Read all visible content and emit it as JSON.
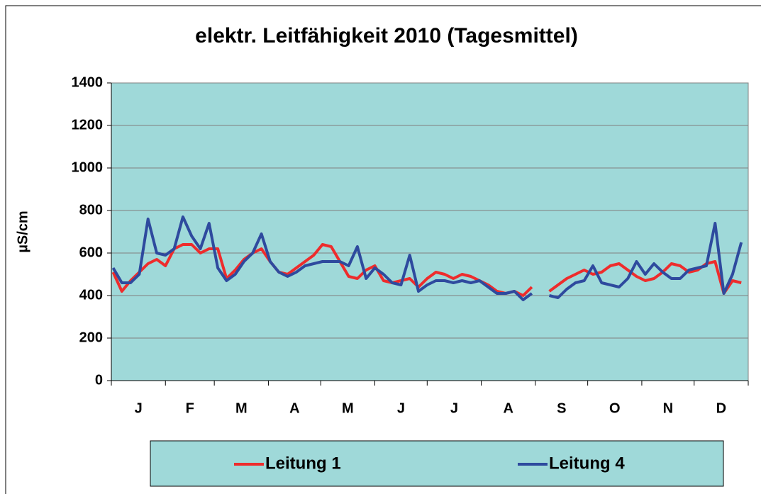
{
  "chart_data": {
    "type": "line",
    "title": "elektr. Leitfähigkeit 2010 (Tagesmittel)",
    "y_label": "µS/cm",
    "categories": [
      "J",
      "F",
      "M",
      "A",
      "M",
      "J",
      "J",
      "A",
      "S",
      "O",
      "N",
      "D"
    ],
    "xlim": [
      0,
      365
    ],
    "xticks": [
      0,
      31,
      59,
      90,
      120,
      151,
      181,
      212,
      243,
      273,
      304,
      334,
      365
    ],
    "x": [
      1,
      6,
      11,
      16,
      21,
      26,
      31,
      36,
      41,
      46,
      51,
      56,
      61,
      66,
      71,
      76,
      81,
      86,
      91,
      96,
      101,
      106,
      111,
      116,
      121,
      126,
      131,
      136,
      141,
      146,
      151,
      156,
      161,
      166,
      171,
      176,
      181,
      186,
      191,
      196,
      201,
      206,
      211,
      216,
      221,
      226,
      231,
      236,
      241,
      246,
      251,
      256,
      261,
      266,
      271,
      276,
      281,
      286,
      291,
      296,
      301,
      306,
      311,
      316,
      321,
      326,
      331,
      336,
      341,
      346,
      351,
      356,
      361
    ],
    "ylim": [
      0,
      1400
    ],
    "yticks": [
      0,
      200,
      400,
      600,
      800,
      1000,
      1200,
      1400
    ],
    "grid": true,
    "legend": "bottom",
    "series": [
      {
        "name": "Leitung 1",
        "color": "#ee2c2c",
        "values": [
          510,
          420,
          470,
          510,
          550,
          570,
          540,
          620,
          640,
          640,
          600,
          620,
          620,
          480,
          520,
          570,
          600,
          620,
          560,
          510,
          500,
          530,
          560,
          590,
          640,
          630,
          560,
          490,
          480,
          520,
          540,
          470,
          460,
          470,
          480,
          440,
          480,
          510,
          500,
          480,
          500,
          490,
          470,
          450,
          420,
          410,
          420,
          400,
          440,
          null,
          420,
          450,
          480,
          500,
          520,
          500,
          510,
          540,
          550,
          520,
          490,
          470,
          480,
          510,
          550,
          540,
          510,
          520,
          550,
          560,
          410,
          470,
          460
        ]
      },
      {
        "name": "Leitung 4",
        "color": "#2e4a9e",
        "values": [
          530,
          460,
          460,
          500,
          760,
          600,
          590,
          620,
          770,
          680,
          620,
          740,
          530,
          470,
          500,
          560,
          600,
          690,
          560,
          510,
          490,
          510,
          540,
          550,
          560,
          560,
          560,
          540,
          630,
          480,
          530,
          500,
          460,
          450,
          590,
          420,
          450,
          470,
          470,
          460,
          470,
          460,
          470,
          440,
          410,
          410,
          420,
          380,
          410,
          null,
          400,
          390,
          430,
          460,
          470,
          540,
          460,
          450,
          440,
          480,
          560,
          500,
          550,
          510,
          480,
          480,
          520,
          530,
          540,
          740,
          410,
          500,
          650
        ]
      }
    ]
  }
}
